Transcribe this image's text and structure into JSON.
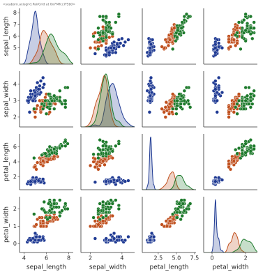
{
  "chart_data": {
    "type": "pairplot",
    "caption": "<seaborn.axisgrid.PairGrid at 0x7f4fcc7f5b0>",
    "variables": [
      "sepal_length",
      "sepal_width",
      "petal_length",
      "petal_width"
    ],
    "axes": [
      {
        "lim": [
          3.6,
          8.4
        ],
        "xticks": [
          4,
          6,
          8
        ],
        "yticks": [
          5,
          6,
          7,
          8
        ]
      },
      {
        "lim": [
          1.4,
          4.8
        ],
        "xticks": [
          2,
          4
        ],
        "yticks": [
          2,
          3,
          4
        ]
      },
      {
        "lim": [
          0.3,
          7.7
        ],
        "xticks": [
          {
            "value": 2.5,
            "label": "2.5"
          },
          {
            "value": 5.0,
            "label": "5.0"
          },
          {
            "value": 7.5,
            "label": "7.5"
          }
        ],
        "yticks": [
          2,
          4,
          6
        ]
      },
      {
        "lim": [
          -0.5,
          2.7
        ],
        "xticks": [
          0,
          2
        ],
        "yticks": [
          0,
          1,
          2
        ]
      }
    ],
    "series": [
      {
        "color": "#1f3a93",
        "values": [
          [
            5.1,
            4.9,
            4.7,
            4.6,
            5.0,
            5.4,
            4.6,
            5.0,
            4.4,
            4.9,
            5.4,
            4.8,
            4.8,
            4.3,
            5.8,
            5.7,
            5.4,
            5.1,
            5.7,
            5.1,
            5.4,
            5.1,
            4.6,
            5.1,
            4.8,
            5.0,
            5.0,
            5.2,
            5.2,
            4.7,
            4.8,
            5.4,
            5.2,
            5.5,
            4.9,
            5.0,
            5.5,
            4.9,
            4.4,
            5.1,
            5.0,
            4.5,
            4.4,
            5.0,
            5.1,
            4.8,
            5.1,
            4.6,
            5.3,
            5.0
          ],
          [
            3.5,
            3.0,
            3.2,
            3.1,
            3.6,
            3.9,
            3.4,
            3.4,
            2.9,
            3.1,
            3.7,
            3.4,
            3.0,
            3.0,
            4.0,
            4.4,
            3.9,
            3.5,
            3.8,
            3.8,
            3.4,
            3.7,
            3.6,
            3.3,
            3.4,
            3.0,
            3.4,
            3.5,
            3.4,
            3.2,
            3.1,
            3.4,
            4.1,
            4.2,
            3.1,
            3.2,
            3.5,
            3.6,
            3.0,
            3.4,
            3.5,
            2.3,
            3.2,
            3.5,
            3.8,
            3.0,
            3.8,
            3.2,
            3.7,
            3.3
          ],
          [
            1.4,
            1.4,
            1.3,
            1.5,
            1.4,
            1.7,
            1.4,
            1.5,
            1.4,
            1.5,
            1.5,
            1.6,
            1.4,
            1.1,
            1.2,
            1.5,
            1.3,
            1.4,
            1.7,
            1.5,
            1.7,
            1.5,
            1.0,
            1.7,
            1.9,
            1.6,
            1.6,
            1.5,
            1.4,
            1.6,
            1.6,
            1.5,
            1.5,
            1.4,
            1.5,
            1.2,
            1.3,
            1.4,
            1.3,
            1.5,
            1.3,
            1.3,
            1.3,
            1.6,
            1.9,
            1.4,
            1.6,
            1.4,
            1.5,
            1.4
          ],
          [
            0.2,
            0.2,
            0.2,
            0.2,
            0.2,
            0.4,
            0.3,
            0.2,
            0.2,
            0.1,
            0.2,
            0.2,
            0.1,
            0.1,
            0.2,
            0.4,
            0.4,
            0.3,
            0.3,
            0.3,
            0.2,
            0.4,
            0.2,
            0.5,
            0.2,
            0.2,
            0.4,
            0.2,
            0.2,
            0.2,
            0.2,
            0.4,
            0.1,
            0.2,
            0.2,
            0.2,
            0.2,
            0.1,
            0.2,
            0.2,
            0.3,
            0.3,
            0.2,
            0.6,
            0.4,
            0.3,
            0.2,
            0.2,
            0.2,
            0.2
          ]
        ]
      },
      {
        "color": "#c0501e",
        "values": [
          [
            7.0,
            6.4,
            6.9,
            5.5,
            6.5,
            5.7,
            6.3,
            4.9,
            6.6,
            5.2,
            5.0,
            5.9,
            6.0,
            6.1,
            5.6,
            6.7,
            5.6,
            5.8,
            6.2,
            5.6,
            5.9,
            6.1,
            6.3,
            6.1,
            6.4,
            6.6,
            6.8,
            6.7,
            6.0,
            5.7,
            5.5,
            5.5,
            5.8,
            6.0,
            5.4,
            6.0,
            6.7,
            6.3,
            5.6,
            5.5,
            5.5,
            6.1,
            5.8,
            5.0,
            5.6,
            5.7,
            5.7,
            6.2,
            5.1,
            5.7
          ],
          [
            3.2,
            3.2,
            3.1,
            2.3,
            2.8,
            2.8,
            3.3,
            2.4,
            2.9,
            2.7,
            2.0,
            3.0,
            2.2,
            2.9,
            2.9,
            3.1,
            3.0,
            2.7,
            2.2,
            2.5,
            3.2,
            2.8,
            2.5,
            2.8,
            2.9,
            3.0,
            2.8,
            3.0,
            2.9,
            2.6,
            2.4,
            2.4,
            2.7,
            2.7,
            3.0,
            3.4,
            3.1,
            2.3,
            3.0,
            2.5,
            2.6,
            3.0,
            2.6,
            2.3,
            2.7,
            3.0,
            2.9,
            2.9,
            2.5,
            2.8
          ],
          [
            4.7,
            4.5,
            4.9,
            4.0,
            4.6,
            4.5,
            4.7,
            3.3,
            4.6,
            3.9,
            3.5,
            4.2,
            4.0,
            4.7,
            3.6,
            4.4,
            4.5,
            4.1,
            4.5,
            3.9,
            4.8,
            4.0,
            4.9,
            4.7,
            4.3,
            4.4,
            4.8,
            5.0,
            4.5,
            3.5,
            3.8,
            3.7,
            3.9,
            5.1,
            4.5,
            4.5,
            4.7,
            4.4,
            4.1,
            4.0,
            4.4,
            4.6,
            4.0,
            3.3,
            4.2,
            4.2,
            4.2,
            4.3,
            3.0,
            4.1
          ],
          [
            1.4,
            1.5,
            1.5,
            1.3,
            1.5,
            1.3,
            1.6,
            1.0,
            1.3,
            1.4,
            1.0,
            1.5,
            1.0,
            1.4,
            1.3,
            1.4,
            1.5,
            1.0,
            1.5,
            1.1,
            1.8,
            1.3,
            1.5,
            1.2,
            1.3,
            1.4,
            1.4,
            1.7,
            1.5,
            1.0,
            1.1,
            1.0,
            1.2,
            1.6,
            1.5,
            1.6,
            1.5,
            1.3,
            1.3,
            1.3,
            1.2,
            1.4,
            1.2,
            1.0,
            1.3,
            1.2,
            1.3,
            1.3,
            1.1,
            1.3
          ]
        ]
      },
      {
        "color": "#1e7a2c",
        "values": [
          [
            6.3,
            5.8,
            7.1,
            6.3,
            6.5,
            7.6,
            4.9,
            7.3,
            6.7,
            7.2,
            6.5,
            6.4,
            6.8,
            5.7,
            5.8,
            6.4,
            6.5,
            7.7,
            7.7,
            6.0,
            6.9,
            5.6,
            7.7,
            6.3,
            6.7,
            7.2,
            6.2,
            6.1,
            6.4,
            7.2,
            7.4,
            7.9,
            6.4,
            6.3,
            6.1,
            7.7,
            6.3,
            6.4,
            6.0,
            6.9,
            6.7,
            6.9,
            5.8,
            6.8,
            6.7,
            6.7,
            6.3,
            6.5,
            6.2,
            5.9
          ],
          [
            3.3,
            2.7,
            3.0,
            2.9,
            3.0,
            3.0,
            2.5,
            2.9,
            2.5,
            3.6,
            3.2,
            2.7,
            3.0,
            2.5,
            2.8,
            3.2,
            3.0,
            3.8,
            2.6,
            2.2,
            3.2,
            2.8,
            2.8,
            2.7,
            3.3,
            3.2,
            2.8,
            3.0,
            2.8,
            3.0,
            2.8,
            3.8,
            2.8,
            2.8,
            2.6,
            3.0,
            3.4,
            3.1,
            3.0,
            3.1,
            3.1,
            3.1,
            2.7,
            3.2,
            3.3,
            3.0,
            2.5,
            3.0,
            3.4,
            3.0
          ],
          [
            6.0,
            5.1,
            5.9,
            5.6,
            5.8,
            6.6,
            4.5,
            6.3,
            5.8,
            6.1,
            5.1,
            5.3,
            5.5,
            5.0,
            5.1,
            5.3,
            5.5,
            6.7,
            6.9,
            5.0,
            5.7,
            4.9,
            6.7,
            4.9,
            5.7,
            6.0,
            4.8,
            4.9,
            5.6,
            5.8,
            6.1,
            6.4,
            5.6,
            5.1,
            5.6,
            6.1,
            5.6,
            5.5,
            4.8,
            5.4,
            5.6,
            5.1,
            5.1,
            5.9,
            5.7,
            5.2,
            5.0,
            5.2,
            5.4,
            5.1
          ],
          [
            2.5,
            1.9,
            2.1,
            1.8,
            2.2,
            2.1,
            1.7,
            1.8,
            1.8,
            2.5,
            2.0,
            1.9,
            2.1,
            2.0,
            2.4,
            2.3,
            1.8,
            2.2,
            2.3,
            1.5,
            2.3,
            2.0,
            2.0,
            1.8,
            2.1,
            1.8,
            1.8,
            1.8,
            2.1,
            1.6,
            1.9,
            2.0,
            2.2,
            1.5,
            1.4,
            2.3,
            2.4,
            1.8,
            1.8,
            2.1,
            2.4,
            2.3,
            1.9,
            2.3,
            2.5,
            2.3,
            1.9,
            2.0,
            2.3,
            1.8
          ]
        ]
      }
    ]
  }
}
